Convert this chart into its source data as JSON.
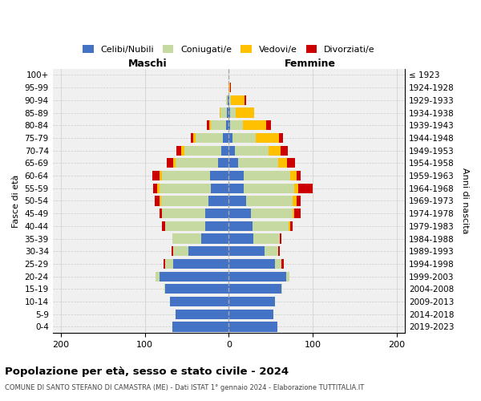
{
  "age_groups": [
    "0-4",
    "5-9",
    "10-14",
    "15-19",
    "20-24",
    "25-29",
    "30-34",
    "35-39",
    "40-44",
    "45-49",
    "50-54",
    "55-59",
    "60-64",
    "65-69",
    "70-74",
    "75-79",
    "80-84",
    "85-89",
    "90-94",
    "95-99",
    "100+"
  ],
  "birth_years": [
    "2019-2023",
    "2014-2018",
    "2009-2013",
    "2004-2008",
    "1999-2003",
    "1994-1998",
    "1989-1993",
    "1984-1988",
    "1979-1983",
    "1974-1978",
    "1969-1973",
    "1964-1968",
    "1959-1963",
    "1954-1958",
    "1949-1953",
    "1944-1948",
    "1939-1943",
    "1934-1938",
    "1929-1933",
    "1924-1928",
    "≤ 1923"
  ],
  "maschi": {
    "celibi": [
      67,
      63,
      70,
      76,
      83,
      66,
      48,
      33,
      28,
      28,
      24,
      21,
      22,
      13,
      9,
      7,
      3,
      2,
      1,
      0,
      0
    ],
    "coniugati": [
      0,
      0,
      0,
      1,
      4,
      10,
      18,
      34,
      48,
      52,
      57,
      62,
      58,
      50,
      44,
      33,
      18,
      8,
      2,
      0,
      0
    ],
    "vedovi": [
      0,
      0,
      0,
      0,
      0,
      0,
      0,
      0,
      0,
      0,
      2,
      2,
      3,
      3,
      4,
      2,
      2,
      1,
      0,
      0,
      0
    ],
    "divorziati": [
      0,
      0,
      0,
      0,
      0,
      2,
      2,
      0,
      4,
      3,
      5,
      5,
      8,
      8,
      5,
      3,
      3,
      0,
      0,
      0,
      0
    ]
  },
  "femmine": {
    "nubili": [
      58,
      53,
      55,
      63,
      68,
      55,
      43,
      29,
      28,
      26,
      21,
      18,
      18,
      11,
      7,
      4,
      2,
      2,
      1,
      0,
      0
    ],
    "coniugate": [
      0,
      0,
      0,
      1,
      4,
      8,
      16,
      32,
      43,
      50,
      55,
      60,
      55,
      48,
      40,
      28,
      15,
      6,
      2,
      0,
      0
    ],
    "vedove": [
      0,
      0,
      0,
      0,
      0,
      0,
      0,
      0,
      2,
      2,
      5,
      5,
      8,
      10,
      15,
      28,
      28,
      22,
      16,
      2,
      0
    ],
    "divorziate": [
      0,
      0,
      0,
      0,
      0,
      3,
      2,
      2,
      3,
      8,
      5,
      17,
      5,
      10,
      8,
      5,
      5,
      0,
      2,
      1,
      0
    ]
  },
  "colors": {
    "celibi": "#4472c4",
    "coniugati": "#c5d9a0",
    "vedovi": "#ffc000",
    "divorziati": "#cc0000"
  },
  "title": "Popolazione per età, sesso e stato civile - 2024",
  "subtitle": "COMUNE DI SANTO STEFANO DI CAMASTRA (ME) - Dati ISTAT 1° gennaio 2024 - Elaborazione TUTTITALIA.IT",
  "xlabel_left": "Maschi",
  "xlabel_right": "Femmine",
  "ylabel_left": "Fasce di età",
  "ylabel_right": "Anni di nascita",
  "xlim": 210,
  "background_color": "#ffffff",
  "grid_color": "#cccccc"
}
